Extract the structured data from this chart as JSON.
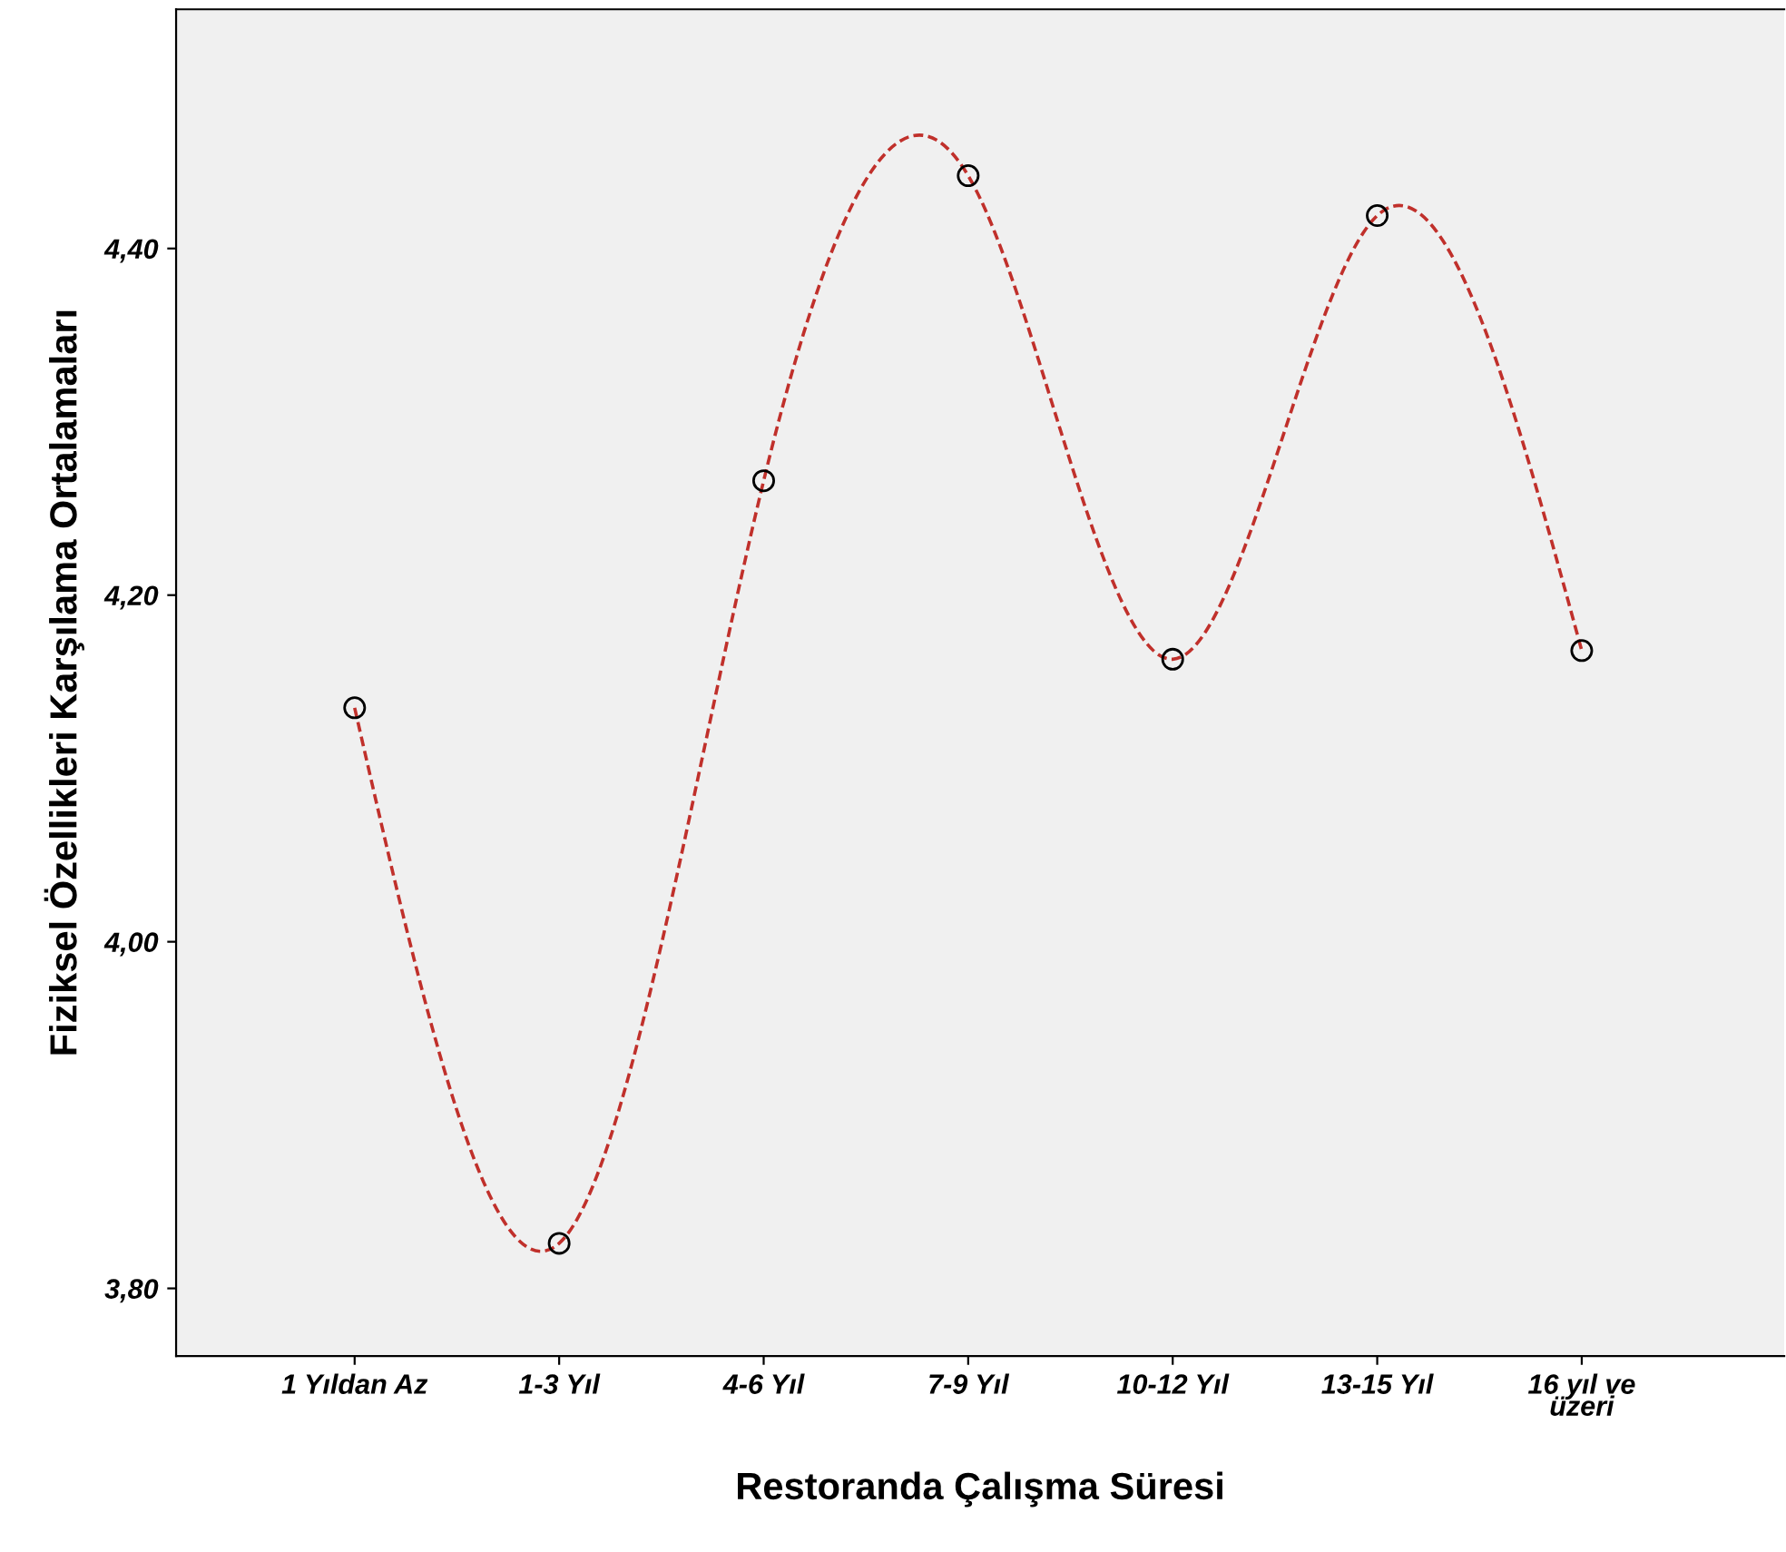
{
  "chart_data": {
    "type": "line",
    "xlabel": "Restoranda Çalışma Süresi",
    "ylabel": "Fiziksel Özellikleri Karşılama Ortalamaları",
    "categories": [
      "1 Yıldan Az",
      "1-3 Yıl",
      "4-6 Yıl",
      "7-9 Yıl",
      "10-12 Yıl",
      "13-15 Yıl",
      "16 yıl ve\nüzeri"
    ],
    "series": [
      {
        "color": "#c0302b",
        "values": [
          4.135,
          3.826,
          4.266,
          4.442,
          4.163,
          4.419,
          4.168
        ]
      }
    ],
    "ylim": [
      3.761,
      4.538
    ],
    "yticks": [
      {
        "value": 3.8,
        "label": "3,80"
      },
      {
        "value": 4.0,
        "label": "4,00"
      },
      {
        "value": 4.2,
        "label": "4,20"
      },
      {
        "value": 4.4,
        "label": "4,40"
      }
    ],
    "marker": "circle",
    "line_style": "dashed",
    "grid": false,
    "legend": false
  }
}
